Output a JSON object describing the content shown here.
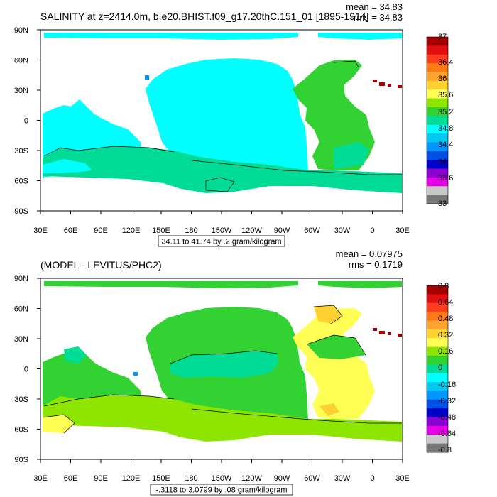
{
  "chart_data": [
    {
      "type": "heatmap",
      "title": "SALINITY at z=2414.0m, b.e20.BHIST.f09_g17.20thC.151_01 [1895-1914]",
      "mean_label": "mean = 34.83",
      "rms_label": "rms = 34.83",
      "xlabel": "",
      "ylabel": "",
      "x_ticks": [
        "30E",
        "60E",
        "90E",
        "120E",
        "150E",
        "180",
        "150W",
        "120W",
        "90W",
        "60W",
        "30W",
        "0",
        "30E"
      ],
      "y_ticks": [
        "90N",
        "60N",
        "30N",
        "0",
        "30S",
        "60S",
        "90S"
      ],
      "xlim": [
        30,
        390
      ],
      "ylim": [
        -90,
        90
      ],
      "contour_note": "34.11 to 41.74 by .2 gram/kilogram",
      "colorbar": {
        "labels": [
          "37",
          "36.4",
          "36",
          "35.6",
          "35.2",
          "34.8",
          "34.4",
          "34",
          "33.6",
          "33"
        ],
        "colors": [
          "#a50000",
          "#e01010",
          "#ff3c1e",
          "#ff7a14",
          "#ffa232",
          "#ffd232",
          "#ffff55",
          "#8ee600",
          "#32d232",
          "#00dc96",
          "#00ffff",
          "#00c8f0",
          "#0096ff",
          "#0050e6",
          "#0000c8",
          "#8c00d2",
          "#e600e6",
          "#c8c8c8",
          "#787878"
        ]
      }
    },
    {
      "type": "heatmap",
      "title": "(MODEL - LEVITUS/PHC2)",
      "mean_label": "mean = 0.07975",
      "rms_label": "rms = 0.1719",
      "xlabel": "",
      "ylabel": "",
      "x_ticks": [
        "30E",
        "60E",
        "90E",
        "120E",
        "150E",
        "180",
        "150W",
        "120W",
        "90W",
        "60W",
        "30W",
        "0",
        "30E"
      ],
      "y_ticks": [
        "90N",
        "60N",
        "30N",
        "0",
        "30S",
        "60S",
        "90S"
      ],
      "xlim": [
        30,
        390
      ],
      "ylim": [
        -90,
        90
      ],
      "contour_note": "-.3118 to 3.0799 by .08 gram/kilogram",
      "colorbar": {
        "labels": [
          "0.8",
          "0.64",
          "0.48",
          "0.32",
          "0.16",
          "0",
          "-0.16",
          "-0.32",
          "-0.48",
          "-0.64",
          "-0.8"
        ],
        "colors": [
          "#a50000",
          "#e01010",
          "#ff3c1e",
          "#ff7a14",
          "#ffa232",
          "#ffd232",
          "#ffff55",
          "#8ee600",
          "#32d232",
          "#00dc96",
          "#00ffff",
          "#00c8f0",
          "#0096ff",
          "#0050e6",
          "#0000c8",
          "#8c00d2",
          "#e600e6",
          "#c8c8c8",
          "#787878"
        ]
      }
    }
  ],
  "colors": {
    "ocean_top": "#00ffff",
    "ocean_top_green": "#32d232",
    "ocean_top_teal": "#00dc96",
    "ocean_bot": "#32d232",
    "ocean_bot_lime": "#8ee600",
    "ocean_bot_cyan": "#00ffff",
    "ocean_bot_yellow": "#ffff55",
    "ocean_bot_gold": "#ffd232",
    "land": "#ffffff",
    "hot": "#a50000",
    "blue": "#0096ff"
  }
}
